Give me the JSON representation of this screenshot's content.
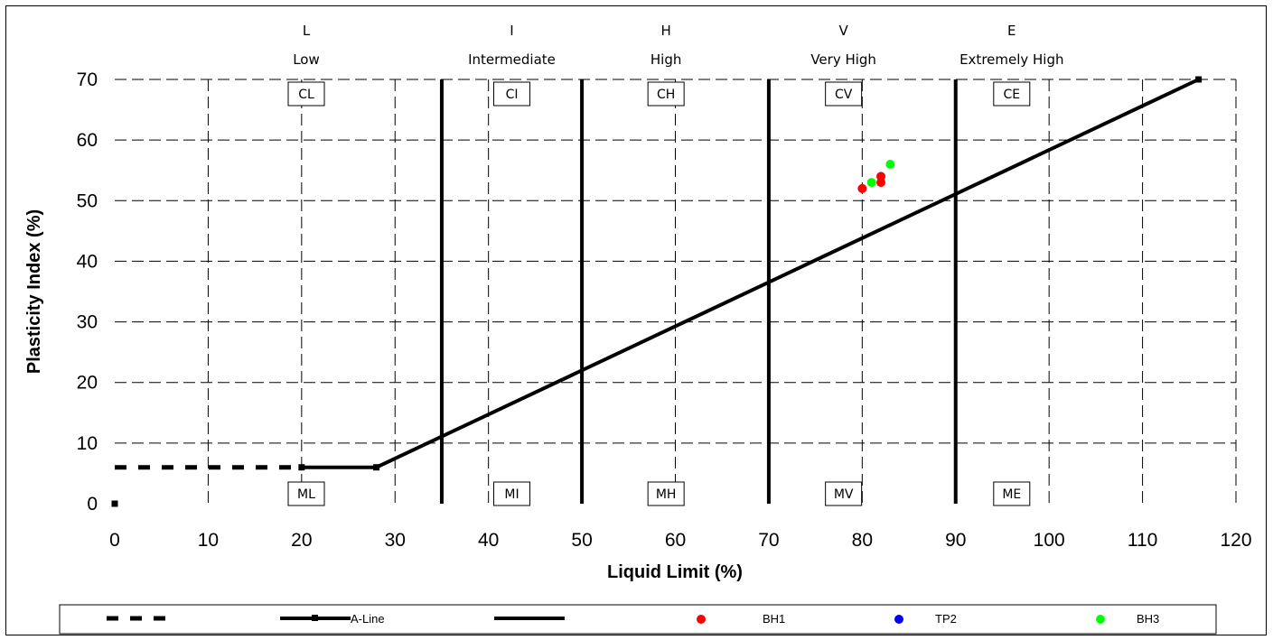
{
  "chart_data": {
    "type": "scatter",
    "xlabel": "Liquid Limit (%)",
    "ylabel": "Plasticity Index (%)",
    "xlim": [
      0,
      120
    ],
    "ylim": [
      0,
      70
    ],
    "x_ticks": [
      0,
      10,
      20,
      30,
      40,
      50,
      60,
      70,
      80,
      90,
      100,
      110,
      120
    ],
    "y_ticks": [
      0,
      10,
      20,
      30,
      40,
      50,
      60,
      70
    ],
    "grid": "dashed",
    "zones": [
      {
        "letter": "L",
        "name": "Low",
        "clay": "CL",
        "silt": "ML",
        "center": 20.5
      },
      {
        "letter": "I",
        "name": "Intermediate",
        "clay": "CI",
        "silt": "MI",
        "center": 42.5
      },
      {
        "letter": "H",
        "name": "High",
        "clay": "CH",
        "silt": "MH",
        "center": 59
      },
      {
        "letter": "V",
        "name": "Very High",
        "clay": "CV",
        "silt": "MV",
        "center": 78
      },
      {
        "letter": "E",
        "name": "Extremely High",
        "clay": "CE",
        "silt": "ME",
        "center": 96
      }
    ],
    "boundaries": [
      35,
      50,
      70,
      90
    ],
    "dashed_line": {
      "x": [
        0,
        20
      ],
      "y": [
        6,
        6
      ]
    },
    "a_line": {
      "name": "A-Line",
      "x": [
        20,
        28,
        116
      ],
      "y": [
        6,
        6,
        70
      ]
    },
    "origin_marker": {
      "x": 0,
      "y": 0
    },
    "series": [
      {
        "name": "BH1",
        "color": "#ff0000",
        "points": [
          [
            80,
            52
          ],
          [
            82,
            53
          ],
          [
            82,
            54
          ]
        ]
      },
      {
        "name": "TP2",
        "color": "#0000ff",
        "points": []
      },
      {
        "name": "BH3",
        "color": "#00ff00",
        "points": [
          [
            81,
            53
          ],
          [
            83,
            56
          ]
        ]
      }
    ]
  },
  "legend": {
    "items": [
      "dashed",
      "a-line",
      "solid",
      "BH1",
      "TP2",
      "BH3"
    ],
    "a_line_label": "A-Line",
    "bh1_label": "BH1",
    "tp2_label": "TP2",
    "bh3_label": "BH3"
  }
}
